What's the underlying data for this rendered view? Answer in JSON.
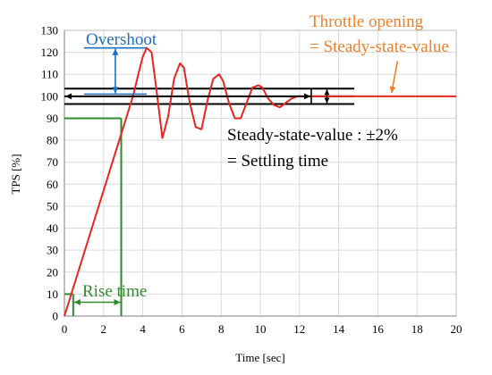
{
  "chart_data": {
    "type": "line",
    "xlabel": "Time [sec]",
    "ylabel": "TPS [%]",
    "xlim": [
      0,
      20
    ],
    "ylim": [
      0,
      130
    ],
    "xticks": [
      0,
      2,
      4,
      6,
      8,
      10,
      12,
      14,
      16,
      18,
      20
    ],
    "yticks": [
      0,
      10,
      20,
      30,
      40,
      50,
      60,
      70,
      80,
      90,
      100,
      110,
      120,
      130
    ],
    "grid": true,
    "series": [
      {
        "color": "#e8251f",
        "x": [
          0,
          3.5,
          3.8,
          4.0,
          4.2,
          4.45,
          4.7,
          5.0,
          5.3,
          5.6,
          5.9,
          6.1,
          6.4,
          6.7,
          7.0,
          7.3,
          7.6,
          7.9,
          8.1,
          8.4,
          8.7,
          9.0,
          9.3,
          9.6,
          9.9,
          10.1,
          10.4,
          10.7,
          11.0,
          11.3,
          11.6,
          11.9,
          12.4,
          20
        ],
        "y": [
          0,
          100,
          111,
          118,
          122,
          120,
          103,
          81,
          91,
          108,
          115,
          113,
          97,
          86,
          85,
          98,
          108,
          110,
          107,
          97,
          90,
          90,
          97,
          104,
          105,
          104,
          99,
          96,
          95,
          97,
          99,
          100,
          100,
          100
        ]
      }
    ],
    "annotations": {
      "overshoot": "Overshoot",
      "throttle_line1": "Throttle opening",
      "throttle_line2": "= Steady-state-value",
      "steady_line1": "Steady-state-value : ±2%",
      "steady_line2": "= Settling time",
      "rise_time": "Rise time"
    },
    "annotation_colors": {
      "overshoot": "#1f6fc0",
      "throttle": "#f07f2a",
      "rise": "#2e8b2e",
      "curve": "#e8251f",
      "band": "#000000"
    }
  }
}
